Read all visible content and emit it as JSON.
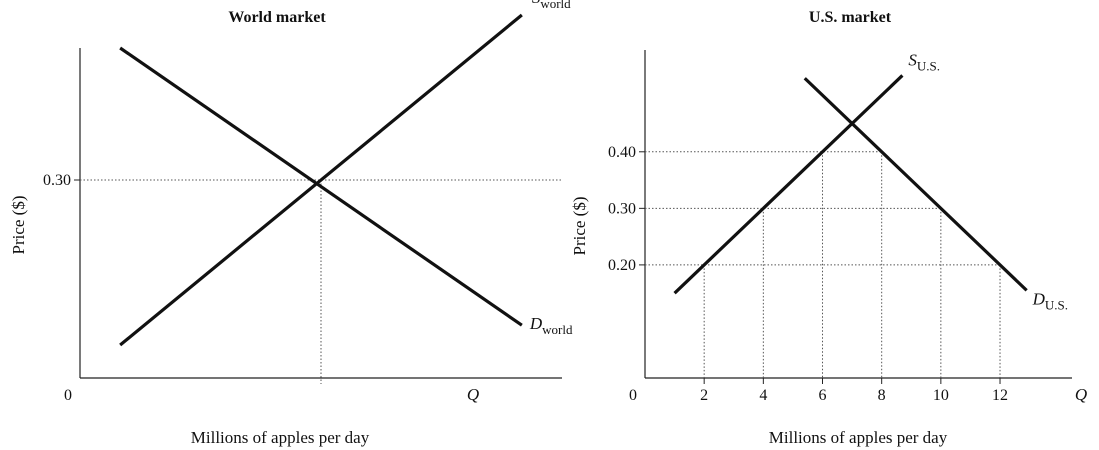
{
  "chart_data": [
    {
      "type": "line",
      "title": "World market",
      "xlabel": "Millions of apples per day",
      "ylabel": "Price ($)",
      "x_axis_symbol": "Q",
      "origin_label": "0",
      "xlim": [
        0,
        12
      ],
      "ylim": [
        0,
        0.5
      ],
      "yticks": [
        {
          "value": 0.3,
          "label": "0.30"
        }
      ],
      "xticks": [],
      "equilibrium": {
        "x": 6,
        "price": 0.3
      },
      "series": [
        {
          "name": "S",
          "subscript": "world",
          "x": [
            1,
            11
          ],
          "y": [
            0.05,
            0.55
          ]
        },
        {
          "name": "D",
          "subscript": "world",
          "x": [
            1,
            11
          ],
          "y": [
            0.5,
            0.08
          ]
        }
      ]
    },
    {
      "type": "line",
      "title": "U.S. market",
      "xlabel": "Millions of apples per day",
      "ylabel": "Price ($)",
      "x_axis_symbol": "Q",
      "origin_label": "0",
      "xlim": [
        0,
        14
      ],
      "ylim": [
        0,
        0.58
      ],
      "yticks": [
        {
          "value": 0.2,
          "label": "0.20"
        },
        {
          "value": 0.3,
          "label": "0.30"
        },
        {
          "value": 0.4,
          "label": "0.40"
        }
      ],
      "xticks": [
        {
          "value": 2,
          "label": "2"
        },
        {
          "value": 4,
          "label": "4"
        },
        {
          "value": 6,
          "label": "6"
        },
        {
          "value": 8,
          "label": "8"
        },
        {
          "value": 10,
          "label": "10"
        },
        {
          "value": 12,
          "label": "12"
        }
      ],
      "guides": [
        {
          "x": 2,
          "price": 0.2
        },
        {
          "x": 4,
          "price": 0.3
        },
        {
          "x": 6,
          "price": 0.4
        },
        {
          "x": 8,
          "price": 0.4
        },
        {
          "x": 10,
          "price": 0.3
        },
        {
          "x": 12,
          "price": 0.2
        }
      ],
      "series": [
        {
          "name": "S",
          "subscript": "U.S.",
          "x": [
            1,
            8.7
          ],
          "y": [
            0.15,
            0.535
          ]
        },
        {
          "name": "D",
          "subscript": "U.S.",
          "x": [
            5.4,
            12.9
          ],
          "y": [
            0.53,
            0.155
          ]
        }
      ]
    }
  ],
  "colors": {
    "line": "#111111",
    "axis": "#222222",
    "guide": "#555555",
    "text": "#111111"
  }
}
